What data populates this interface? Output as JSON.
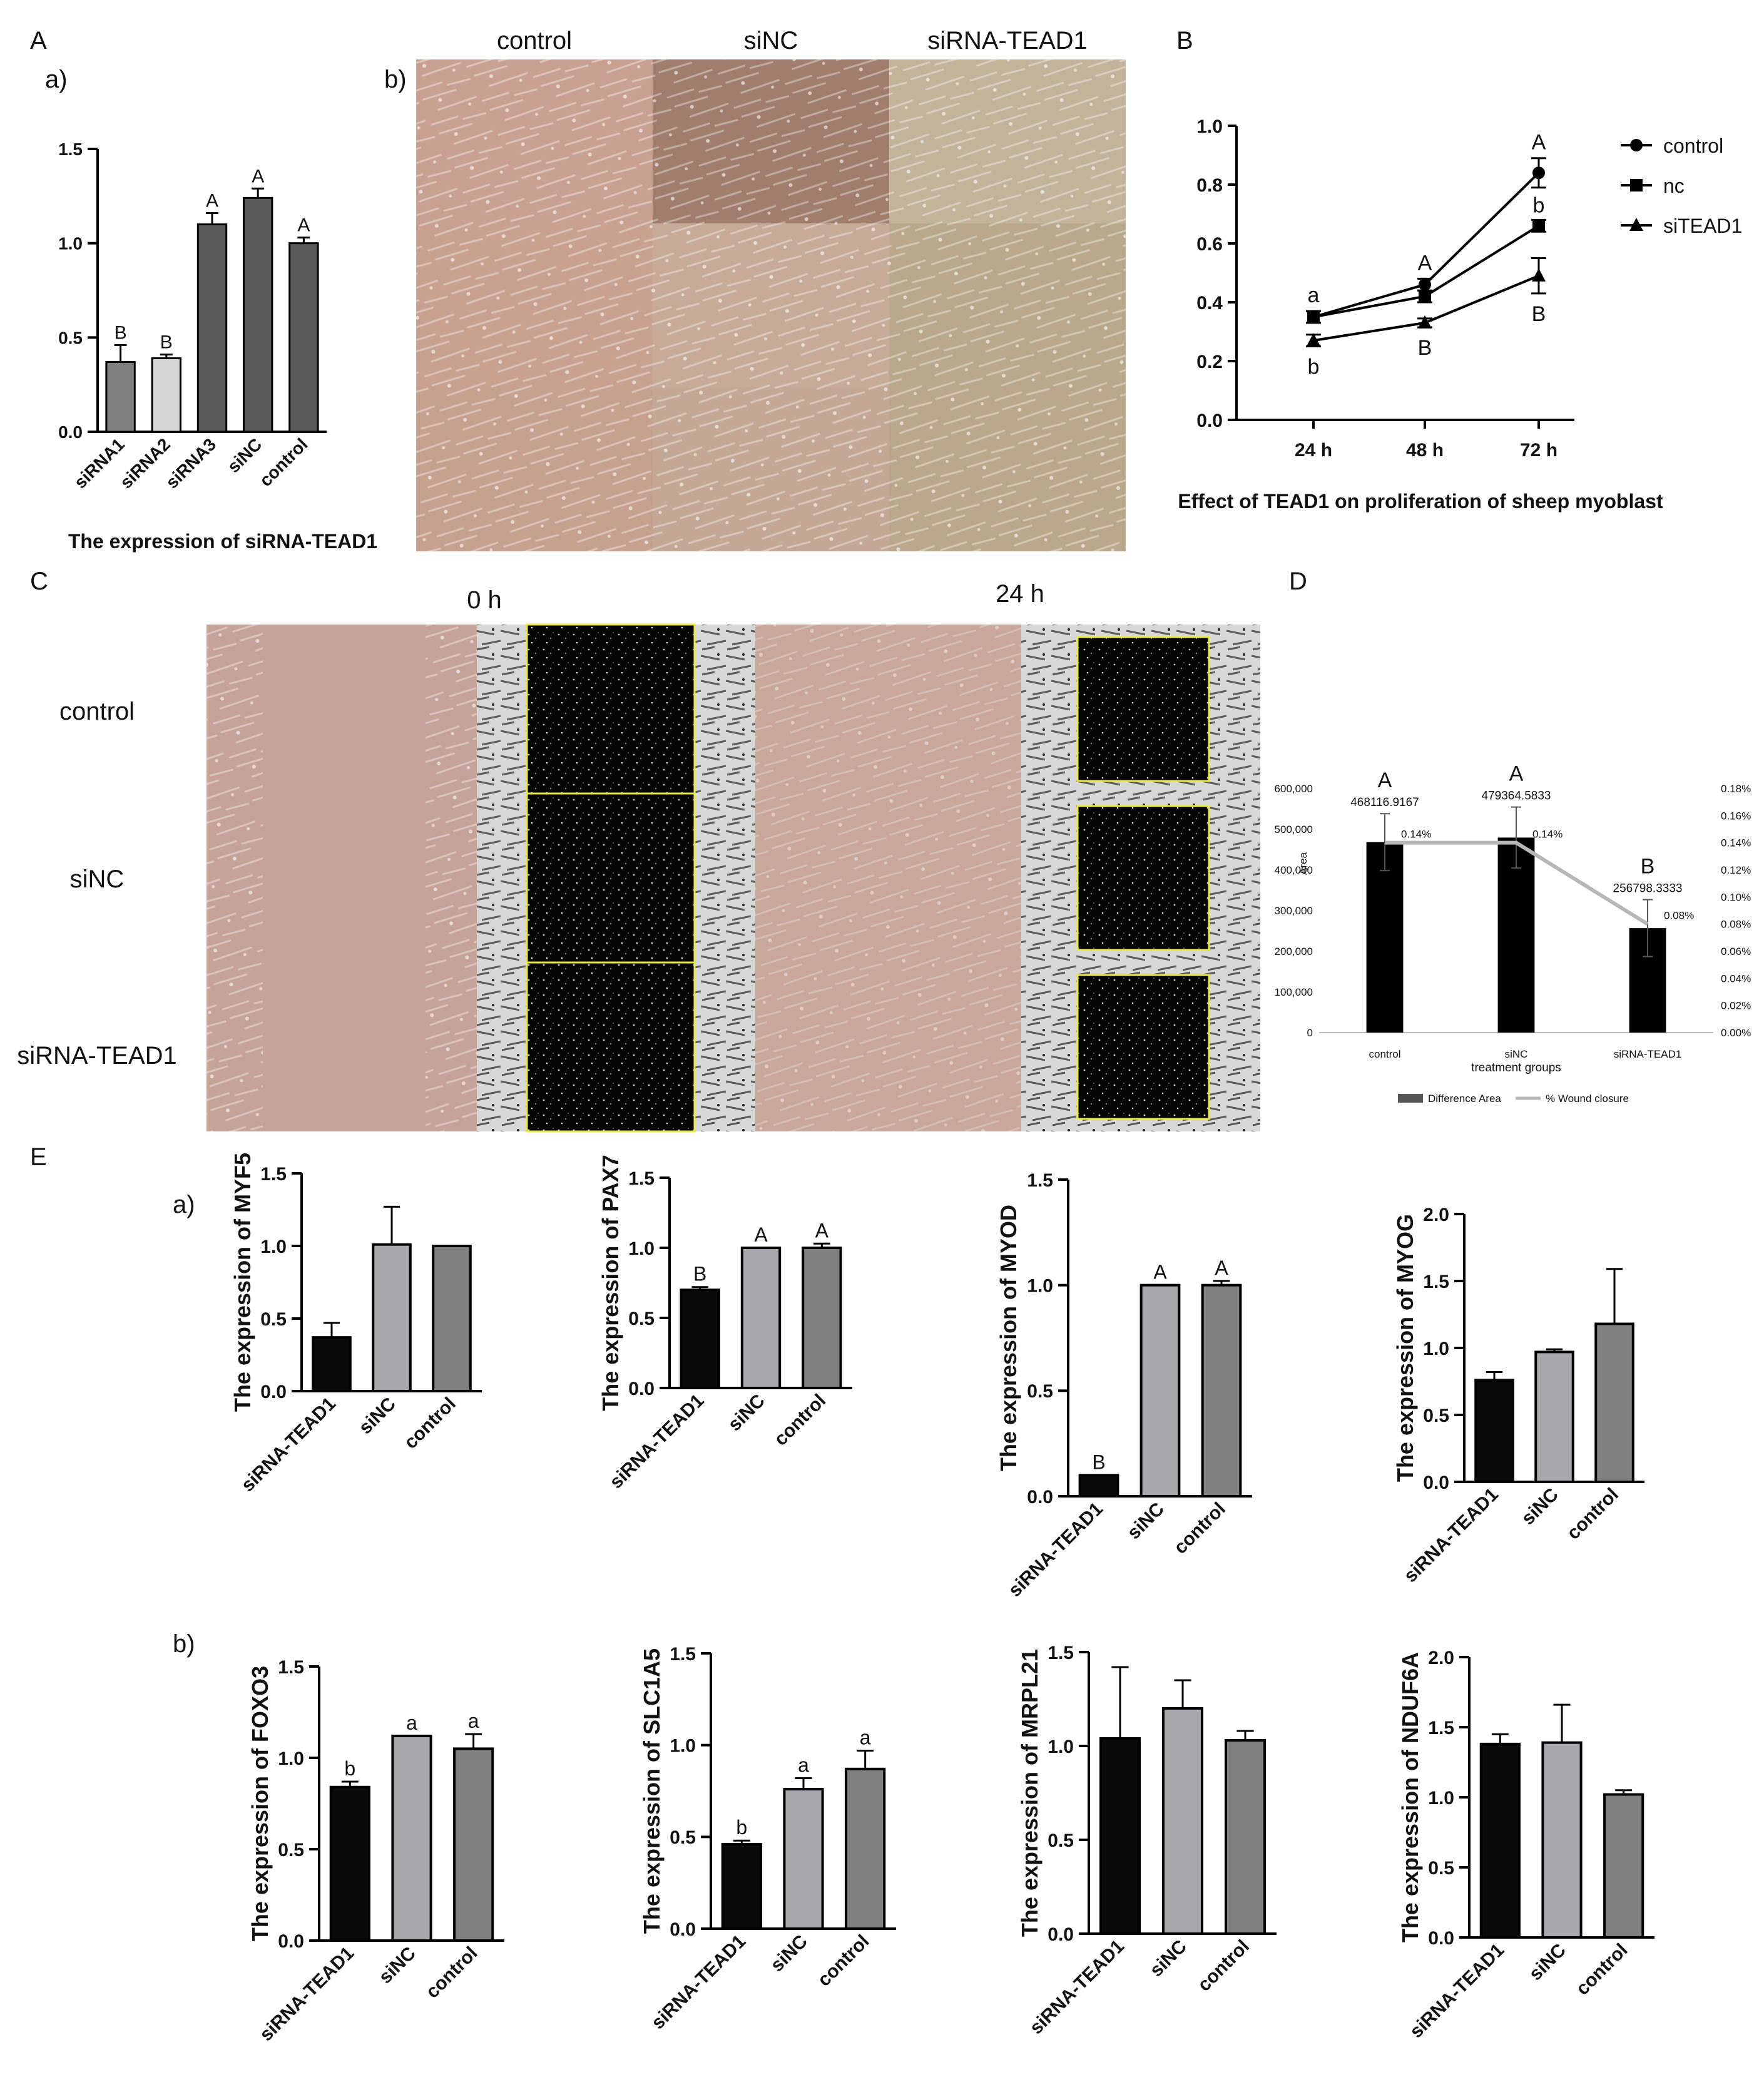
{
  "colors": {
    "black": "#0a0a0a",
    "dark_gray": "#595959",
    "mid_gray": "#808080",
    "light_gray": "#a8a8ad",
    "pale": "#d6d6d6",
    "wound_line": "#b7b7b7",
    "highlight": "#e8e84a"
  },
  "panel_labels": {
    "A": "A",
    "A_a": "a)",
    "A_b": "b)",
    "B": "B",
    "C": "C",
    "D": "D",
    "E": "E",
    "E_a": "a)",
    "E_b": "b)"
  },
  "micro": {
    "headers": [
      "control",
      "siNC",
      "siRNA-TEAD1"
    ]
  },
  "scratch": {
    "time_labels": [
      "0 h",
      "24 h"
    ],
    "row_labels": [
      "control",
      "siNC",
      "siRNA-TEAD1"
    ]
  },
  "chart_data": [
    {
      "id": "A_a",
      "type": "bar",
      "title": "The expression of siRNA-TEAD1",
      "categories": [
        "siRNA1",
        "siRNA2",
        "siRNA3",
        "siNC",
        "control"
      ],
      "values": [
        0.37,
        0.39,
        1.1,
        1.24,
        1.0
      ],
      "errors": [
        0.09,
        0.02,
        0.06,
        0.05,
        0.03
      ],
      "letters": [
        "B",
        "B",
        "A",
        "A",
        "A"
      ],
      "ylim": [
        0,
        1.5
      ],
      "yticks": [
        "0.0",
        "0.5",
        "1.0",
        "1.5"
      ]
    },
    {
      "id": "B",
      "type": "line",
      "title": "Effect of TEAD1 on proliferation of sheep myoblast",
      "categories": [
        "24 h",
        "48 h",
        "72 h"
      ],
      "ylim": [
        0,
        1.0
      ],
      "yticks": [
        "0.0",
        "0.2",
        "0.4",
        "0.6",
        "0.8",
        "1.0"
      ],
      "series": [
        {
          "name": "control",
          "marker": "circle",
          "values": [
            0.35,
            0.46,
            0.84
          ],
          "errors": [
            0.02,
            0.02,
            0.05
          ]
        },
        {
          "name": "nc",
          "marker": "square",
          "values": [
            0.35,
            0.42,
            0.66
          ],
          "errors": [
            0.02,
            0.02,
            0.02
          ]
        },
        {
          "name": "siTEAD1",
          "marker": "triangle",
          "values": [
            0.27,
            0.33,
            0.49
          ],
          "errors": [
            0.02,
            0.015,
            0.06
          ]
        }
      ],
      "letters_above": [
        "a",
        "A",
        "A"
      ],
      "letters_mid": [
        "",
        "",
        "b"
      ],
      "letters_below": [
        "b",
        "B",
        "B"
      ]
    },
    {
      "id": "D",
      "type": "bar",
      "xlabel": "treatment groups",
      "ylabel": "Area",
      "categories": [
        "control",
        "siNC",
        "siRNA-TEAD1"
      ],
      "values": [
        468116.9167,
        479364.5833,
        256798.3333
      ],
      "value_labels": [
        "468116.9167",
        "479364.5833",
        "256798.3333"
      ],
      "errors": [
        70000,
        75000,
        70000
      ],
      "letters": [
        "A",
        "A",
        "B"
      ],
      "ylim": [
        0,
        600000
      ],
      "yticks": [
        "0",
        "100,000",
        "200,000",
        "300,000",
        "400,000",
        "500,000",
        "600,000"
      ],
      "line": {
        "name": "% Wound closure",
        "values": [
          0.14,
          0.14,
          0.08
        ],
        "labels": [
          "0.14%",
          "0.14%",
          "0.08%"
        ]
      },
      "bar_series_name": "Difference Area",
      "y2lim": [
        0,
        0.18
      ],
      "y2ticks": [
        "0.00%",
        "0.02%",
        "0.04%",
        "0.06%",
        "0.08%",
        "0.10%",
        "0.12%",
        "0.14%",
        "0.16%",
        "0.18%"
      ]
    },
    {
      "id": "E_MYF5",
      "type": "bar",
      "ylabel": "The expression of MYF5",
      "categories": [
        "siRNA-TEAD1",
        "siNC",
        "control"
      ],
      "values": [
        0.37,
        1.01,
        1.0
      ],
      "errors": [
        0.1,
        0.26,
        0.0
      ],
      "letters": [
        "",
        "",
        ""
      ],
      "ylim": [
        0,
        1.5
      ],
      "yticks": [
        "0.0",
        "0.5",
        "1.0",
        "1.5"
      ]
    },
    {
      "id": "E_PAX7",
      "type": "bar",
      "ylabel": "The expression of PAX7",
      "categories": [
        "siRNA-TEAD1",
        "siNC",
        "control"
      ],
      "values": [
        0.7,
        1.0,
        1.0
      ],
      "errors": [
        0.02,
        0.0,
        0.03
      ],
      "letters": [
        "B",
        "A",
        "A"
      ],
      "ylim": [
        0,
        1.5
      ],
      "yticks": [
        "0.0",
        "0.5",
        "1.0",
        "1.5"
      ]
    },
    {
      "id": "E_MYOD",
      "type": "bar",
      "ylabel": "The expression of MYOD",
      "categories": [
        "siRNA-TEAD1",
        "siNC",
        "control"
      ],
      "values": [
        0.1,
        1.0,
        1.0
      ],
      "errors": [
        0.0,
        0.0,
        0.02
      ],
      "letters": [
        "B",
        "A",
        "A"
      ],
      "ylim": [
        0,
        1.5
      ],
      "yticks": [
        "0.0",
        "0.5",
        "1.0",
        "1.5"
      ]
    },
    {
      "id": "E_MYOG",
      "type": "bar",
      "ylabel": "The expression of MYOG",
      "categories": [
        "siRNA-TEAD1",
        "siNC",
        "control"
      ],
      "values": [
        0.76,
        0.97,
        1.18
      ],
      "errors": [
        0.06,
        0.02,
        0.41
      ],
      "letters": [
        "",
        "",
        ""
      ],
      "ylim": [
        0,
        2.0
      ],
      "yticks": [
        "0.0",
        "0.5",
        "1.0",
        "1.5",
        "2.0"
      ]
    },
    {
      "id": "E_FOXO3",
      "type": "bar",
      "ylabel": "The expression of FOXO3",
      "categories": [
        "siRNA-TEAD1",
        "siNC",
        "control"
      ],
      "values": [
        0.84,
        1.12,
        1.05
      ],
      "errors": [
        0.03,
        0.0,
        0.08
      ],
      "letters": [
        "b",
        "a",
        "a"
      ],
      "ylim": [
        0,
        1.5
      ],
      "yticks": [
        "0.0",
        "0.5",
        "1.0",
        "1.5"
      ]
    },
    {
      "id": "E_SLC1A5",
      "type": "bar",
      "ylabel": "The expression of SLC1A5",
      "categories": [
        "siRNA-TEAD1",
        "siNC",
        "control"
      ],
      "values": [
        0.46,
        0.76,
        0.87
      ],
      "errors": [
        0.02,
        0.06,
        0.1
      ],
      "letters": [
        "b",
        "a",
        "a"
      ],
      "ylim": [
        0,
        1.5
      ],
      "yticks": [
        "0.0",
        "0.5",
        "1.0",
        "1.5"
      ]
    },
    {
      "id": "E_MRPL21",
      "type": "bar",
      "ylabel": "The expression of MRPL21",
      "categories": [
        "siRNA-TEAD1",
        "siNC",
        "control"
      ],
      "values": [
        1.04,
        1.2,
        1.03
      ],
      "errors": [
        0.38,
        0.15,
        0.05
      ],
      "letters": [
        "",
        "",
        ""
      ],
      "ylim": [
        0,
        1.5
      ],
      "yticks": [
        "0.0",
        "0.5",
        "1.0",
        "1.5"
      ]
    },
    {
      "id": "E_NDUF6A",
      "type": "bar",
      "ylabel": "The expression of NDUF6A",
      "categories": [
        "siRNA-TEAD1",
        "siNC",
        "control"
      ],
      "values": [
        1.38,
        1.39,
        1.02
      ],
      "errors": [
        0.07,
        0.27,
        0.03
      ],
      "letters": [
        "",
        "",
        ""
      ],
      "ylim": [
        0,
        2.0
      ],
      "yticks": [
        "0.0",
        "0.5",
        "1.0",
        "1.5",
        "2.0"
      ]
    }
  ]
}
